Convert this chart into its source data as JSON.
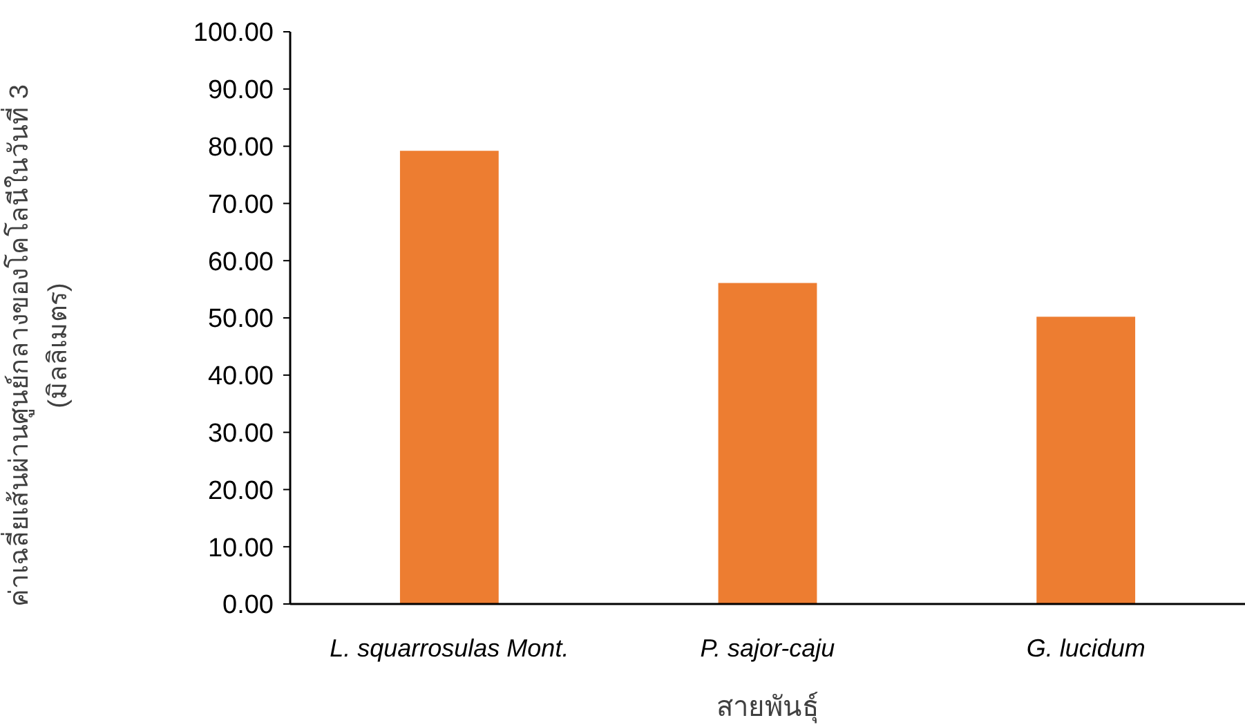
{
  "chart_data": {
    "type": "bar",
    "categories": [
      "L. squarrosulas Mont.",
      "P. sajor-caju",
      "G. lucidum"
    ],
    "values": [
      79.2,
      56.1,
      50.2
    ],
    "color": "#ed7d31",
    "xlabel": "สายพันธุ์",
    "ylabel": "ค่าเฉลี่ยเส้นผ่านศูนย์กลางของโคโลนีในวันที่ 3\n(มิลลิเมตร)",
    "ylim": [
      0,
      100
    ],
    "yticks": [
      {
        "value": 0,
        "label": "0.00"
      },
      {
        "value": 10,
        "label": "10.00"
      },
      {
        "value": 20,
        "label": "20.00"
      },
      {
        "value": 30,
        "label": "30.00"
      },
      {
        "value": 40,
        "label": "40.00"
      },
      {
        "value": 50,
        "label": "50.00"
      },
      {
        "value": 60,
        "label": "60.00"
      },
      {
        "value": 70,
        "label": "70.00"
      },
      {
        "value": 80,
        "label": "80.00"
      },
      {
        "value": 90,
        "label": "90.00"
      },
      {
        "value": 100,
        "label": "100.00"
      }
    ],
    "grid": false
  }
}
